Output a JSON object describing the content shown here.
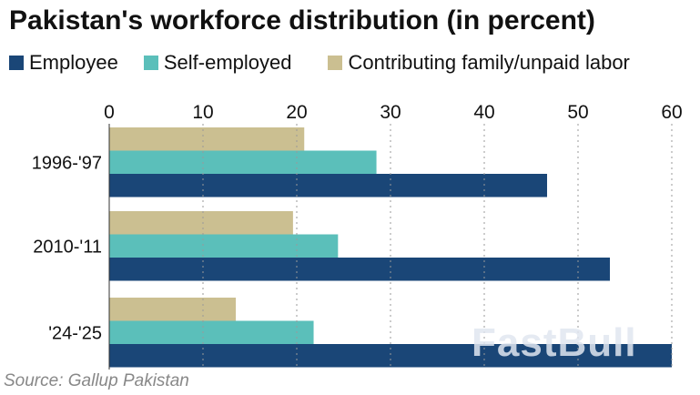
{
  "chart_data": {
    "type": "bar",
    "orientation": "horizontal",
    "title": "Pakistan's workforce distribution (in percent)",
    "categories": [
      "1996-'97",
      "2010-'11",
      "'24-'25"
    ],
    "series": [
      {
        "name": "Employee",
        "color": "#1a4677",
        "values": [
          46.7,
          53.4,
          60.0
        ]
      },
      {
        "name": "Self-employed",
        "color": "#5bbfba",
        "values": [
          28.5,
          24.4,
          21.8
        ]
      },
      {
        "name": "Contributing family/unpaid labor",
        "color": "#cbbf91",
        "values": [
          20.8,
          19.6,
          13.5
        ]
      }
    ],
    "xlim": [
      0,
      60
    ],
    "xticks": [
      "0",
      "10",
      "20",
      "30",
      "40",
      "50",
      "60"
    ],
    "grid": true,
    "legend": "top",
    "source": "Source: Gallup Pakistan",
    "watermark": "FastBull"
  }
}
